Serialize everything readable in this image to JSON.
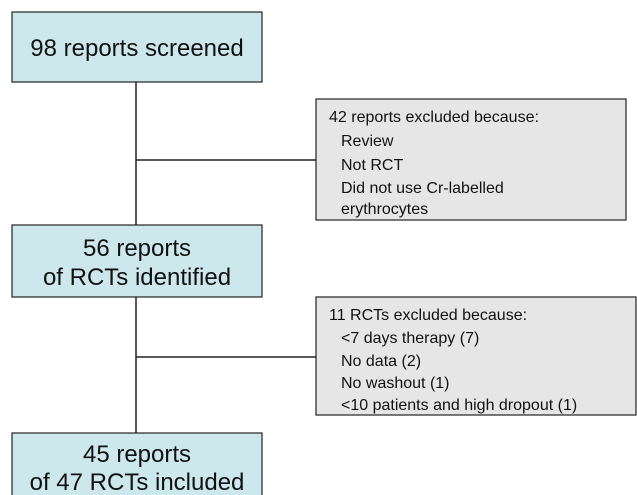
{
  "nodes": [
    {
      "lines": [
        "98 reports screened"
      ]
    },
    {
      "lines": [
        "56 reports",
        "of RCTs identified"
      ]
    },
    {
      "lines": [
        "45 reports",
        "of 47 RCTs included"
      ]
    }
  ],
  "exclusions": [
    {
      "title": "42 reports excluded because:",
      "items": [
        "Review",
        "Not RCT",
        "Did not use Cr-labelled",
        "erythrocytes"
      ]
    },
    {
      "title": "11 RCTs excluded because:",
      "items": [
        "<7 days therapy (7)",
        "No data (2)",
        "No washout (1)",
        "<10 patients and high dropout (1)"
      ]
    }
  ]
}
